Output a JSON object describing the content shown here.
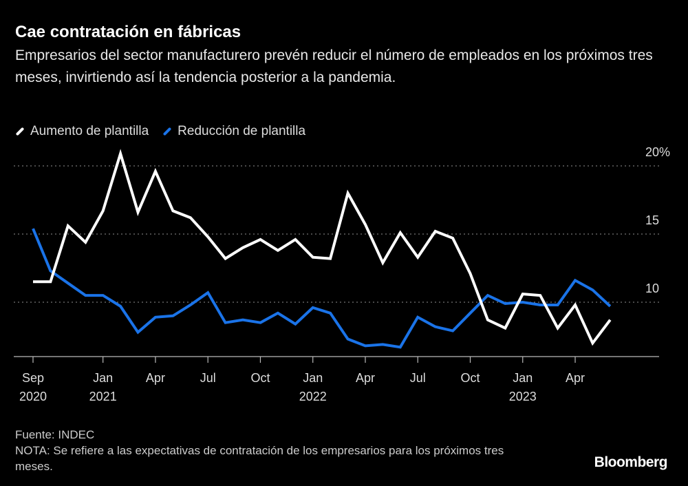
{
  "title": "Cae contratación en fábricas",
  "subtitle": "Empresarios del sector manufacturero prevén reducir el número de empleados en los próximos tres meses, invirtiendo así la tendencia posterior a la pandemia.",
  "footer": {
    "source": "Fuente: INDEC",
    "note": "NOTA: Se refiere a las expectativas de contratación de los empresarios para los próximos tres meses.",
    "logo": "Bloomberg"
  },
  "chart_data": {
    "type": "line",
    "title": "Cae contratación en fábricas",
    "x": [
      "2020-09",
      "2020-10",
      "2020-11",
      "2020-12",
      "2021-01",
      "2021-02",
      "2021-03",
      "2021-04",
      "2021-05",
      "2021-06",
      "2021-07",
      "2021-08",
      "2021-09",
      "2021-10",
      "2021-11",
      "2021-12",
      "2022-01",
      "2022-02",
      "2022-03",
      "2022-04",
      "2022-05",
      "2022-06",
      "2022-07",
      "2022-08",
      "2022-09",
      "2022-10",
      "2022-11",
      "2022-12",
      "2023-01",
      "2023-02",
      "2023-03",
      "2023-04",
      "2023-05",
      "2023-06"
    ],
    "x_ticks": [
      {
        "month": "2020-09",
        "label": "Sep",
        "year": "2020"
      },
      {
        "month": "2021-01",
        "label": "Jan",
        "year": "2021"
      },
      {
        "month": "2021-04",
        "label": "Apr",
        "year": ""
      },
      {
        "month": "2021-07",
        "label": "Jul",
        "year": ""
      },
      {
        "month": "2021-10",
        "label": "Oct",
        "year": ""
      },
      {
        "month": "2022-01",
        "label": "Jan",
        "year": "2022"
      },
      {
        "month": "2022-04",
        "label": "Apr",
        "year": ""
      },
      {
        "month": "2022-07",
        "label": "Jul",
        "year": ""
      },
      {
        "month": "2022-10",
        "label": "Oct",
        "year": ""
      },
      {
        "month": "2023-01",
        "label": "Jan",
        "year": "2023"
      },
      {
        "month": "2023-04",
        "label": "Apr",
        "year": ""
      }
    ],
    "series": [
      {
        "name": "Aumento de plantilla",
        "color": "#ffffff",
        "values": [
          11.5,
          11.5,
          15.6,
          14.4,
          16.7,
          20.9,
          16.6,
          19.6,
          16.7,
          16.2,
          14.8,
          13.2,
          14.0,
          14.6,
          13.8,
          14.6,
          13.3,
          13.2,
          18.0,
          15.7,
          12.9,
          15.1,
          13.3,
          15.2,
          14.7,
          12.1,
          8.7,
          8.1,
          10.6,
          10.5,
          8.1,
          9.8,
          7.0,
          8.7
        ]
      },
      {
        "name": "Reducción de plantilla",
        "color": "#1a73e8",
        "values": [
          15.4,
          12.3,
          11.4,
          10.5,
          10.5,
          9.7,
          7.8,
          8.9,
          9.0,
          9.8,
          10.7,
          8.5,
          8.7,
          8.5,
          9.2,
          8.4,
          9.6,
          9.2,
          7.3,
          6.8,
          6.9,
          6.7,
          8.9,
          8.2,
          7.9,
          9.2,
          10.5,
          9.9,
          10.0,
          9.8,
          9.8,
          11.6,
          10.9,
          9.7
        ]
      }
    ],
    "y_ticks": [
      {
        "value": 10,
        "label": "10"
      },
      {
        "value": 15,
        "label": "15"
      },
      {
        "value": 20,
        "label": "20%"
      }
    ],
    "ylim": [
      6,
      21
    ],
    "grid": true,
    "legend": "top-left"
  }
}
